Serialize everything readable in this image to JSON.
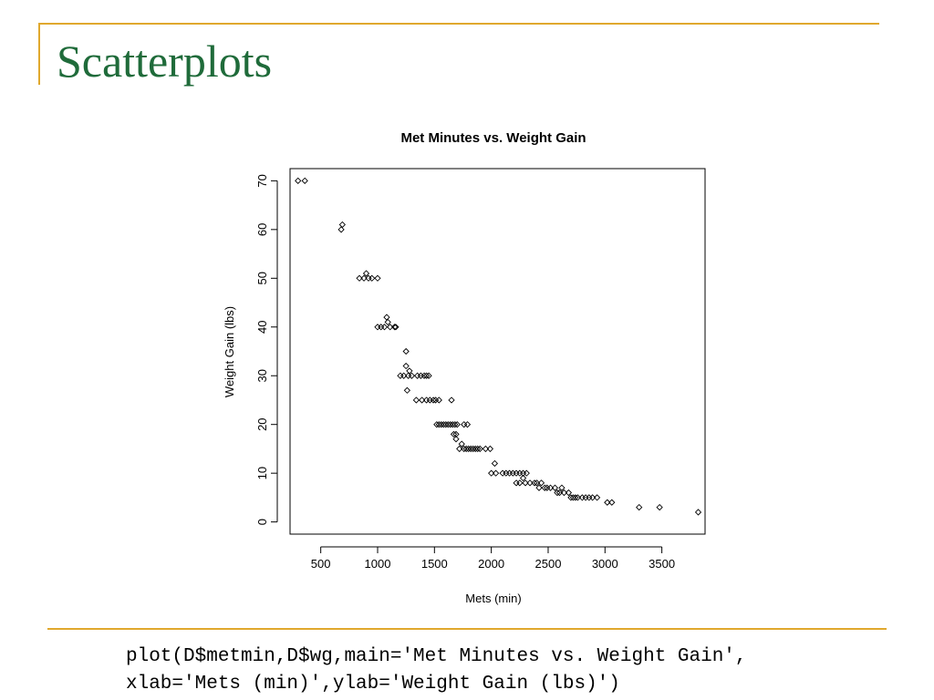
{
  "slide": {
    "title": "Scatterplots",
    "code_lines": [
      "plot(D$metmin,D$wg,main='Met Minutes vs. Weight Gain',",
      "xlab='Mets (min)',ylab='Weight Gain (lbs)')"
    ]
  },
  "colors": {
    "title_green": "#1f6b3a",
    "rule_gold": "#e0a82e",
    "points": "#000000"
  },
  "chart_data": {
    "type": "scatter",
    "title": "Met Minutes vs. Weight Gain",
    "xlabel": "Mets (min)",
    "ylabel": "Weight Gain (lbs)",
    "xlim": [
      230,
      3880
    ],
    "ylim": [
      -2.5,
      72.5
    ],
    "xticks": [
      500,
      1000,
      1500,
      2000,
      2500,
      3000,
      3500
    ],
    "yticks": [
      0,
      10,
      20,
      30,
      40,
      50,
      60,
      70
    ],
    "marker": "open-diamond",
    "grid": false,
    "points": [
      [
        300,
        70
      ],
      [
        360,
        70
      ],
      [
        680,
        60
      ],
      [
        690,
        61
      ],
      [
        840,
        50
      ],
      [
        880,
        50
      ],
      [
        900,
        51
      ],
      [
        920,
        50
      ],
      [
        950,
        50
      ],
      [
        1000,
        50
      ],
      [
        1000,
        40
      ],
      [
        1030,
        40
      ],
      [
        1060,
        40
      ],
      [
        1080,
        42
      ],
      [
        1090,
        41
      ],
      [
        1110,
        40
      ],
      [
        1150,
        40
      ],
      [
        1160,
        40
      ],
      [
        1200,
        30
      ],
      [
        1230,
        30
      ],
      [
        1250,
        35
      ],
      [
        1250,
        32
      ],
      [
        1260,
        27
      ],
      [
        1270,
        30
      ],
      [
        1280,
        31
      ],
      [
        1300,
        30
      ],
      [
        1350,
        30
      ],
      [
        1380,
        30
      ],
      [
        1410,
        30
      ],
      [
        1430,
        30
      ],
      [
        1450,
        30
      ],
      [
        1340,
        25
      ],
      [
        1390,
        25
      ],
      [
        1430,
        25
      ],
      [
        1460,
        25
      ],
      [
        1490,
        25
      ],
      [
        1510,
        25
      ],
      [
        1540,
        25
      ],
      [
        1650,
        25
      ],
      [
        1520,
        20
      ],
      [
        1540,
        20
      ],
      [
        1560,
        20
      ],
      [
        1580,
        20
      ],
      [
        1600,
        20
      ],
      [
        1620,
        20
      ],
      [
        1640,
        20
      ],
      [
        1660,
        20
      ],
      [
        1680,
        20
      ],
      [
        1700,
        20
      ],
      [
        1760,
        20
      ],
      [
        1790,
        20
      ],
      [
        1670,
        18
      ],
      [
        1690,
        18
      ],
      [
        1690,
        17
      ],
      [
        1720,
        15
      ],
      [
        1740,
        16
      ],
      [
        1760,
        15
      ],
      [
        1780,
        15
      ],
      [
        1800,
        15
      ],
      [
        1820,
        15
      ],
      [
        1840,
        15
      ],
      [
        1860,
        15
      ],
      [
        1880,
        15
      ],
      [
        1900,
        15
      ],
      [
        1950,
        15
      ],
      [
        1990,
        15
      ],
      [
        2000,
        10
      ],
      [
        2030,
        12
      ],
      [
        2040,
        10
      ],
      [
        2100,
        10
      ],
      [
        2130,
        10
      ],
      [
        2160,
        10
      ],
      [
        2190,
        10
      ],
      [
        2220,
        10
      ],
      [
        2250,
        10
      ],
      [
        2280,
        10
      ],
      [
        2310,
        10
      ],
      [
        2220,
        8
      ],
      [
        2250,
        8
      ],
      [
        2280,
        9
      ],
      [
        2300,
        8
      ],
      [
        2340,
        8
      ],
      [
        2380,
        8
      ],
      [
        2400,
        8
      ],
      [
        2420,
        7
      ],
      [
        2440,
        8
      ],
      [
        2470,
        7
      ],
      [
        2490,
        7
      ],
      [
        2520,
        7
      ],
      [
        2560,
        7
      ],
      [
        2580,
        6
      ],
      [
        2600,
        6
      ],
      [
        2620,
        7
      ],
      [
        2640,
        6
      ],
      [
        2680,
        6
      ],
      [
        2700,
        5
      ],
      [
        2720,
        5
      ],
      [
        2740,
        5
      ],
      [
        2760,
        5
      ],
      [
        2800,
        5
      ],
      [
        2830,
        5
      ],
      [
        2860,
        5
      ],
      [
        2890,
        5
      ],
      [
        2930,
        5
      ],
      [
        3020,
        4
      ],
      [
        3060,
        4
      ],
      [
        3300,
        3
      ],
      [
        3480,
        3
      ],
      [
        3820,
        2
      ]
    ]
  }
}
